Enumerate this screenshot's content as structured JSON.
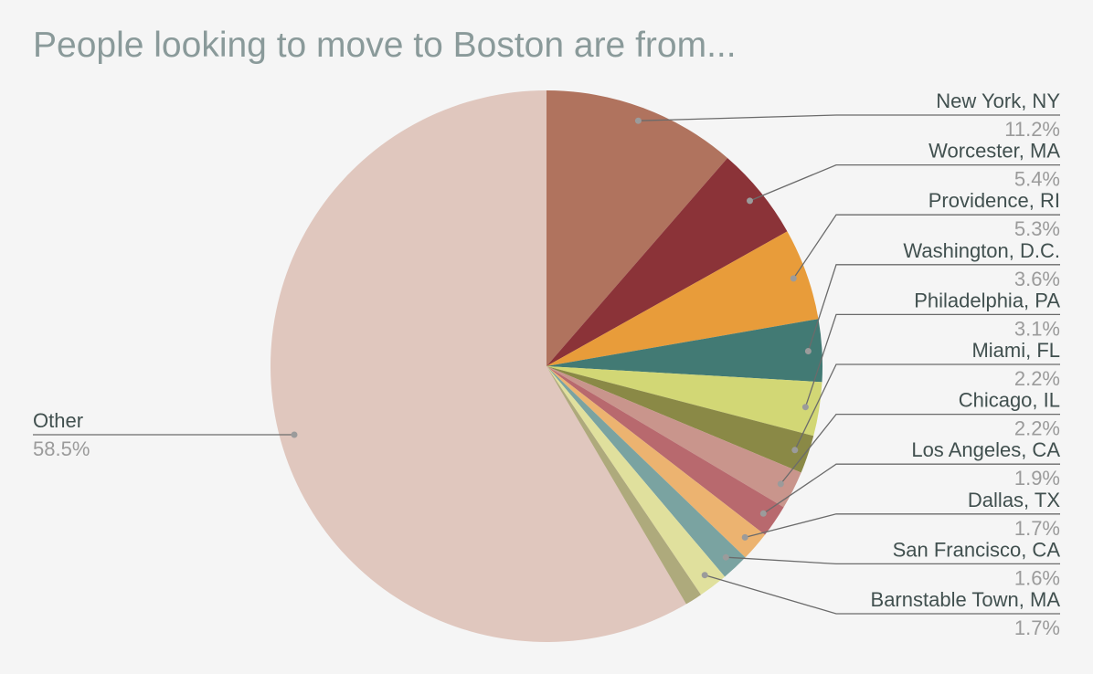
{
  "chart_data": {
    "type": "pie",
    "title": "People looking to move to Boston are from...",
    "slices": [
      {
        "label": "New York, NY",
        "value": 11.2,
        "pct": "11.2%",
        "color": "#b0735e"
      },
      {
        "label": "Worcester, MA",
        "value": 5.4,
        "pct": "5.4%",
        "color": "#8b3338"
      },
      {
        "label": "Providence, RI",
        "value": 5.3,
        "pct": "5.3%",
        "color": "#e89c3a"
      },
      {
        "label": "Washington, D.C.",
        "value": 3.6,
        "pct": "3.6%",
        "color": "#427a74"
      },
      {
        "label": "Philadelphia, PA",
        "value": 3.1,
        "pct": "3.1%",
        "color": "#d2d775"
      },
      {
        "label": "Miami, FL",
        "value": 2.2,
        "pct": "2.2%",
        "color": "#8a8946"
      },
      {
        "label": "Chicago, IL",
        "value": 2.2,
        "pct": "2.2%",
        "color": "#c9958c"
      },
      {
        "label": "Los Angeles, CA",
        "value": 1.9,
        "pct": "1.9%",
        "color": "#b8696e"
      },
      {
        "label": "Dallas, TX",
        "value": 1.7,
        "pct": "1.7%",
        "color": "#ecb370"
      },
      {
        "label": "San Francisco, CA",
        "value": 1.6,
        "pct": "1.6%",
        "color": "#7aa3a1"
      },
      {
        "label": "Barnstable Town, MA",
        "value": 1.7,
        "pct": "1.7%",
        "color": "#e0e09d"
      },
      {
        "label": "Other",
        "value": 58.5,
        "pct": "58.5%",
        "color": "#e0c7be"
      }
    ],
    "extra_slice_color": "#aeaa7c",
    "legend": "callout-labels"
  }
}
